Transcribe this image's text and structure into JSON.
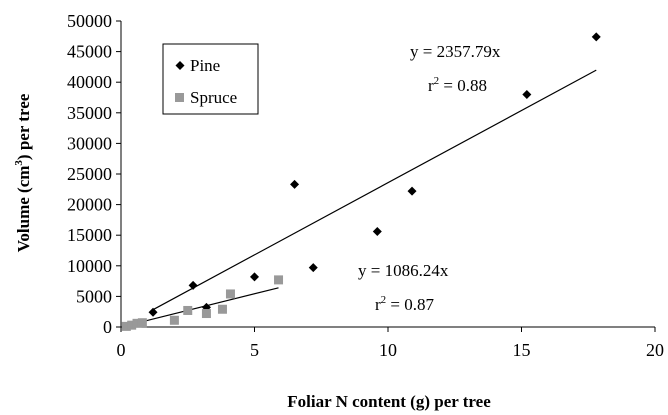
{
  "chart_data": {
    "type": "scatter",
    "title": "",
    "xlabel": "Foliar N content (g) per tree",
    "ylabel_main": "Volume (cm",
    "ylabel_sup": "3",
    "ylabel_tail": ") per tree",
    "xlim": [
      0,
      20
    ],
    "ylim": [
      0,
      50000
    ],
    "x_ticks": [
      0,
      5,
      10,
      15,
      20
    ],
    "y_ticks": [
      0,
      5000,
      10000,
      15000,
      20000,
      25000,
      30000,
      35000,
      40000,
      45000,
      50000
    ],
    "grid": false,
    "legend_position": "top-left",
    "series": [
      {
        "name": "Pine",
        "marker": "diamond",
        "color": "#000000",
        "points": [
          [
            1.2,
            2400
          ],
          [
            2.7,
            6800
          ],
          [
            3.2,
            3200
          ],
          [
            5.0,
            8200
          ],
          [
            6.5,
            23300
          ],
          [
            7.2,
            9700
          ],
          [
            9.6,
            15600
          ],
          [
            10.9,
            22200
          ],
          [
            15.2,
            38000
          ],
          [
            17.8,
            47400
          ]
        ],
        "fit": {
          "slope": 2357.79,
          "x_range": [
            1.2,
            17.8
          ]
        },
        "equation": "y = 2357.79x",
        "r2_prefix": "r",
        "r2_sup": "2",
        "r2_value": " = 0.88"
      },
      {
        "name": "Spruce",
        "marker": "square",
        "color": "#999999",
        "points": [
          [
            0.2,
            100
          ],
          [
            0.4,
            300
          ],
          [
            0.6,
            600
          ],
          [
            0.8,
            700
          ],
          [
            2.0,
            1100
          ],
          [
            2.5,
            2700
          ],
          [
            3.2,
            2200
          ],
          [
            3.8,
            2900
          ],
          [
            4.1,
            5400
          ],
          [
            5.9,
            7700
          ]
        ],
        "fit": {
          "slope": 1086.24,
          "x_range": [
            0.8,
            5.9
          ]
        },
        "equation": "y = 1086.24x",
        "r2_prefix": "r",
        "r2_sup": "2",
        "r2_value": " = 0.87"
      }
    ]
  }
}
